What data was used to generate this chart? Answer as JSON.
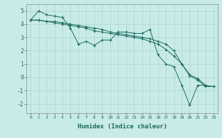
{
  "xlabel": "Humidex (Indice chaleur)",
  "background_color": "#c8ebe8",
  "grid_color": "#aad4d0",
  "line_color": "#1a6b5e",
  "x_values": [
    0,
    1,
    2,
    3,
    4,
    5,
    6,
    7,
    8,
    9,
    10,
    11,
    12,
    13,
    14,
    15,
    16,
    17,
    18,
    19,
    20,
    21,
    22,
    23
  ],
  "series1": [
    4.3,
    5.0,
    4.7,
    4.6,
    4.5,
    3.7,
    2.5,
    2.7,
    2.4,
    2.8,
    2.8,
    3.4,
    3.4,
    3.3,
    3.3,
    3.6,
    1.7,
    1.0,
    0.8,
    -0.6,
    -2.1,
    -0.6,
    -0.6,
    null
  ],
  "series2": [
    4.3,
    4.3,
    4.2,
    4.2,
    4.1,
    4.0,
    3.9,
    3.8,
    3.7,
    3.6,
    3.4,
    3.3,
    3.2,
    3.1,
    3.0,
    2.9,
    2.7,
    2.5,
    2.0,
    1.0,
    0.2,
    -0.1,
    -0.6,
    -0.7
  ],
  "series3": [
    4.3,
    4.3,
    4.2,
    4.1,
    4.0,
    3.9,
    3.8,
    3.7,
    3.5,
    3.4,
    3.3,
    3.2,
    3.1,
    3.0,
    2.9,
    2.7,
    2.5,
    2.1,
    1.6,
    1.0,
    0.1,
    -0.2,
    -0.7,
    -0.7
  ],
  "ylim": [
    -2.7,
    5.5
  ],
  "xlim": [
    -0.5,
    23.5
  ],
  "yticks": [
    -2,
    -1,
    0,
    1,
    2,
    3,
    4,
    5
  ],
  "xticks": [
    0,
    1,
    2,
    3,
    4,
    5,
    6,
    7,
    8,
    9,
    10,
    11,
    12,
    13,
    14,
    15,
    16,
    17,
    18,
    19,
    20,
    21,
    22,
    23
  ],
  "xtick_labels": [
    "0",
    "1",
    "2",
    "3",
    "4",
    "5",
    "6",
    "7",
    "8",
    "9",
    "10",
    "11",
    "12",
    "13",
    "14",
    "15",
    "16",
    "17",
    "18",
    "19",
    "20",
    "21",
    "22",
    "23"
  ]
}
